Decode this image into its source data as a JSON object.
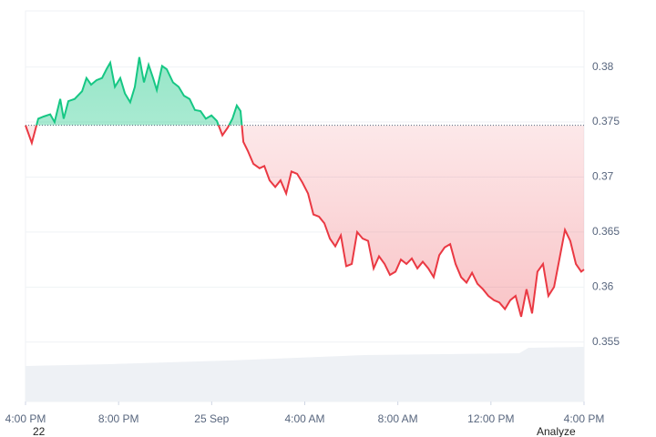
{
  "chart_data": {
    "type": "baseline-line",
    "x": [
      0,
      0.27,
      0.55,
      0.78,
      1.06,
      1.25,
      1.49,
      1.64,
      1.84,
      2.11,
      2.43,
      2.62,
      2.82,
      3.05,
      3.29,
      3.48,
      3.64,
      3.84,
      4.07,
      4.27,
      4.5,
      4.7,
      4.89,
      5.09,
      5.29,
      5.48,
      5.64,
      5.87,
      6.07,
      6.34,
      6.58,
      6.81,
      7.05,
      7.28,
      7.52,
      7.75,
      7.99,
      8.22,
      8.46,
      8.69,
      8.89,
      9.08,
      9.24,
      9.36,
      9.55,
      9.79,
      10.06,
      10.26,
      10.49,
      10.73,
      10.96,
      11.2,
      11.43,
      11.67,
      11.9,
      12.14,
      12.37,
      12.61,
      12.84,
      13.08,
      13.31,
      13.55,
      13.78,
      14.02,
      14.25,
      14.49,
      14.72,
      14.96,
      15.19,
      15.43,
      15.66,
      15.9,
      16.13,
      16.37,
      16.6,
      16.84,
      17.07,
      17.31,
      17.54,
      17.78,
      18.01,
      18.25,
      18.48,
      18.72,
      18.95,
      19.19,
      19.42,
      19.66,
      19.89,
      20.13,
      20.36,
      20.6,
      20.83,
      21.06,
      21.3,
      21.53,
      21.77,
      22,
      22.24,
      22.47,
      22.71,
      22.94,
      23.18,
      23.41,
      23.65,
      23.88,
      24
    ],
    "values": [
      0.3747,
      0.3731,
      0.3753,
      0.3755,
      0.3757,
      0.375,
      0.3771,
      0.3753,
      0.3769,
      0.3771,
      0.3778,
      0.379,
      0.3784,
      0.3788,
      0.379,
      0.3798,
      0.3804,
      0.3782,
      0.379,
      0.3776,
      0.3768,
      0.3782,
      0.3809,
      0.3786,
      0.3802,
      0.379,
      0.3779,
      0.3801,
      0.3798,
      0.3786,
      0.3782,
      0.3774,
      0.3771,
      0.3761,
      0.376,
      0.3753,
      0.3756,
      0.3751,
      0.3738,
      0.3745,
      0.3753,
      0.3765,
      0.376,
      0.3732,
      0.3724,
      0.3712,
      0.3708,
      0.371,
      0.3697,
      0.3691,
      0.3697,
      0.3685,
      0.3705,
      0.3703,
      0.3695,
      0.3685,
      0.3666,
      0.3664,
      0.3658,
      0.3644,
      0.3637,
      0.3647,
      0.3619,
      0.3621,
      0.365,
      0.3644,
      0.3642,
      0.3617,
      0.3628,
      0.3621,
      0.3611,
      0.3614,
      0.3625,
      0.3621,
      0.3626,
      0.3617,
      0.3623,
      0.3617,
      0.3609,
      0.3629,
      0.3636,
      0.3639,
      0.3621,
      0.3609,
      0.3604,
      0.3613,
      0.3603,
      0.3598,
      0.3592,
      0.3588,
      0.3586,
      0.358,
      0.3588,
      0.3592,
      0.3573,
      0.3598,
      0.3576,
      0.3614,
      0.3621,
      0.3592,
      0.36,
      0.3625,
      0.3652,
      0.3642,
      0.3621,
      0.3614,
      0.3616
    ],
    "baseline": 0.3747,
    "up_color": "#16c784",
    "down_color": "#ea3943",
    "xlim": [
      0,
      24
    ],
    "xticks": [
      {
        "value": 0,
        "label": "4:00 PM"
      },
      {
        "value": 4,
        "label": "8:00 PM"
      },
      {
        "value": 8,
        "label": "25 Sep"
      },
      {
        "value": 12,
        "label": "4:00 AM"
      },
      {
        "value": 16,
        "label": "8:00 AM"
      },
      {
        "value": 20,
        "label": "12:00 PM"
      },
      {
        "value": 24,
        "label": "4:00 PM"
      }
    ],
    "ylim": [
      0.3496,
      0.3851
    ],
    "yticks": [
      0.355,
      0.36,
      0.365,
      0.37,
      0.375,
      0.38
    ],
    "grid": true,
    "footnote_left": "22",
    "footnote_right": "Analyze"
  }
}
